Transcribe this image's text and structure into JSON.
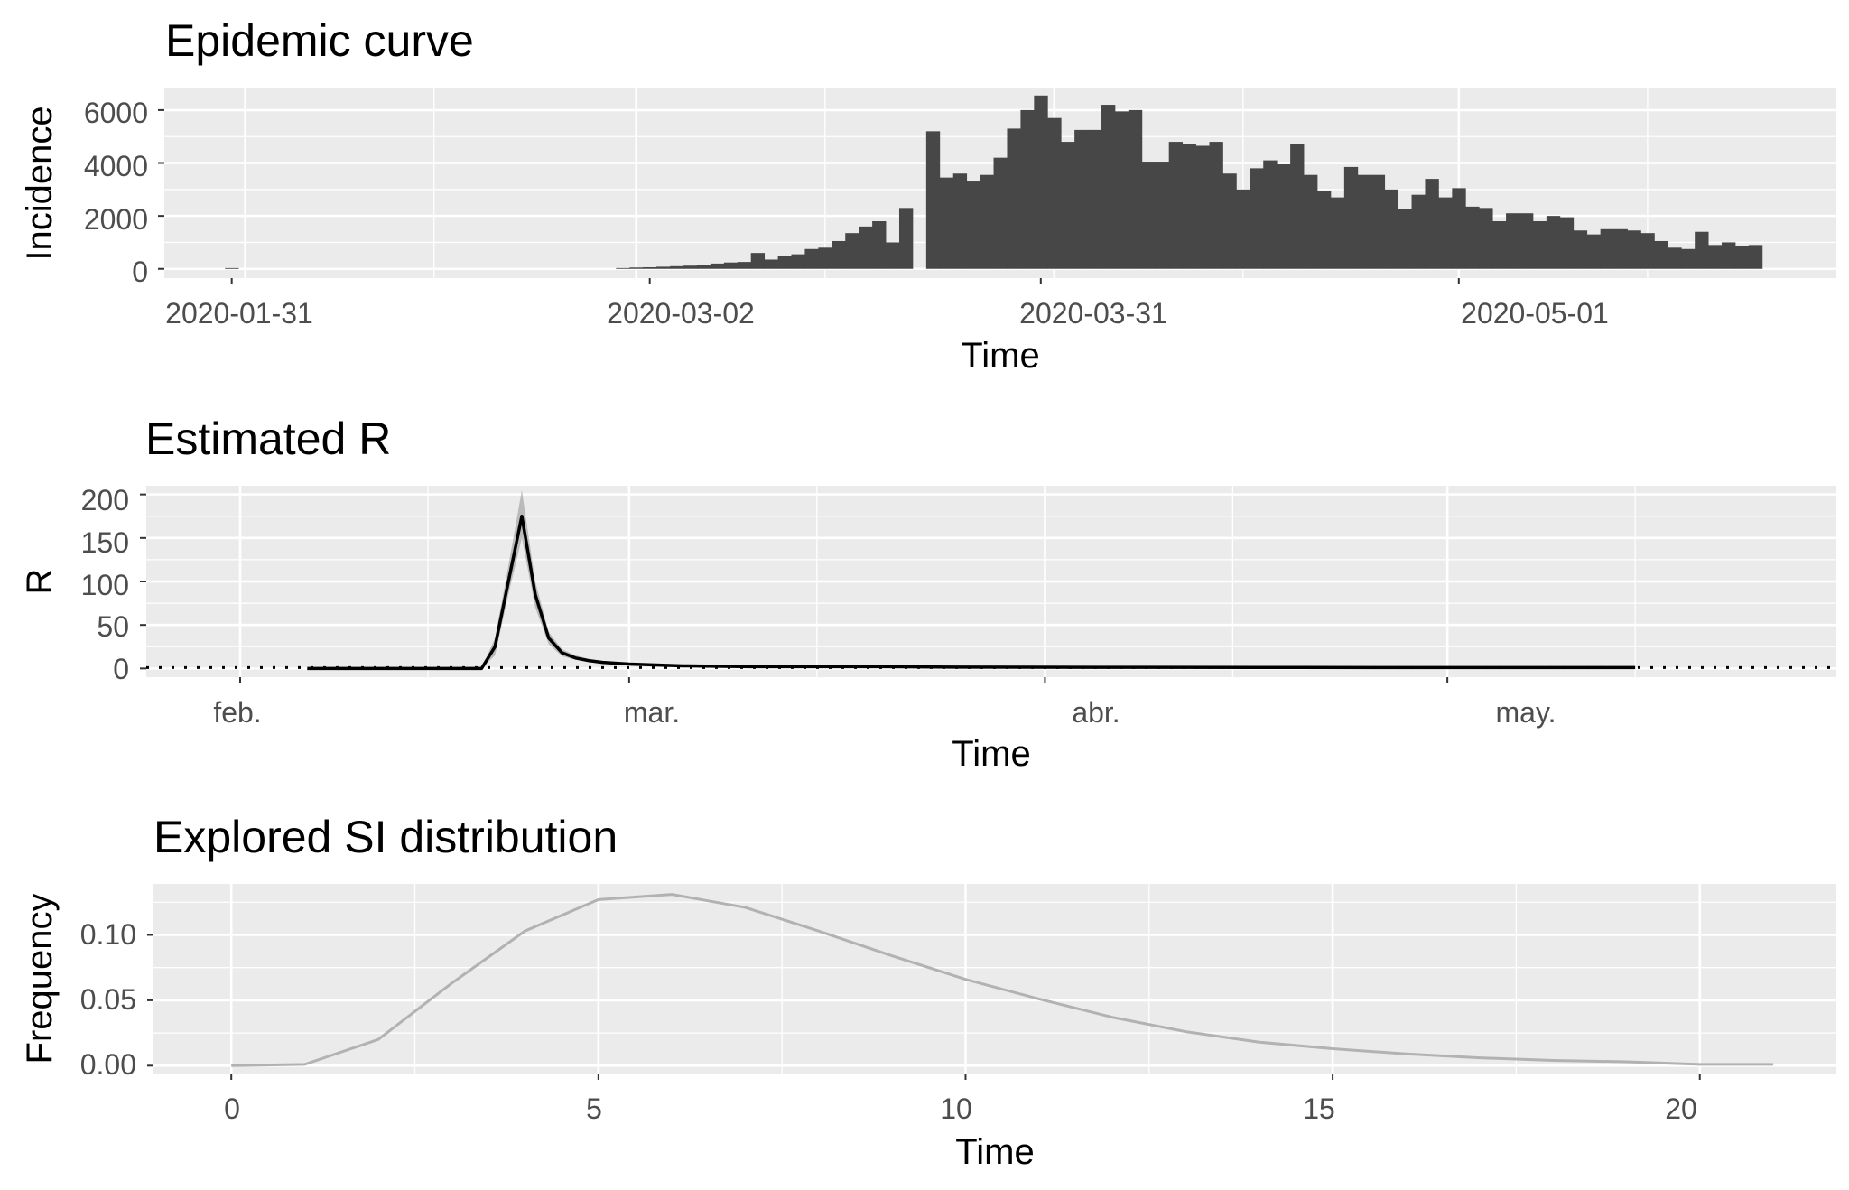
{
  "chart_data": [
    {
      "type": "bar",
      "title": "Epidemic curve",
      "xlabel": "Time",
      "ylabel": "Incidence",
      "x_ticks": [
        "2020-01-31",
        "2020-03-02",
        "2020-03-31",
        "2020-05-01"
      ],
      "y_ticks": [
        "0",
        "2000",
        "4000",
        "6000"
      ],
      "ylim": [
        -350,
        6850
      ],
      "xlim": [
        "2020-01-26",
        "2020-05-29"
      ],
      "grid": true,
      "start_date": "2020-01-31",
      "values": [
        30,
        0,
        0,
        0,
        0,
        0,
        0,
        0,
        0,
        0,
        0,
        0,
        0,
        0,
        0,
        0,
        0,
        0,
        0,
        0,
        0,
        0,
        0,
        0,
        0,
        0,
        0,
        0,
        0,
        30,
        50,
        60,
        80,
        100,
        120,
        150,
        200,
        240,
        260,
        600,
        350,
        500,
        550,
        750,
        800,
        1050,
        1350,
        1600,
        1800,
        1000,
        2300,
        0,
        5200,
        3450,
        3600,
        3300,
        3550,
        4200,
        5300,
        6000,
        6550,
        5700,
        4800,
        5250,
        5250,
        6200,
        5950,
        6000,
        4050,
        4050,
        4800,
        4700,
        4650,
        4800,
        3600,
        3000,
        3800,
        4100,
        3950,
        4700,
        3550,
        2950,
        2700,
        3850,
        3550,
        3550,
        3000,
        2250,
        2800,
        3400,
        2700,
        3050,
        2350,
        2300,
        1800,
        2100,
        2100,
        1800,
        2000,
        1950,
        1450,
        1300,
        1500,
        1500,
        1450,
        1350,
        1050,
        800,
        750,
        1400,
        900,
        1000,
        850,
        900
      ]
    },
    {
      "type": "line",
      "title": "Estimated R",
      "xlabel": "Time",
      "ylabel": "R",
      "x_ticks": [
        "feb.",
        "mar.",
        "abr.",
        "may."
      ],
      "y_ticks": [
        "0",
        "50",
        "100",
        "150",
        "200"
      ],
      "ylim": [
        -10,
        210
      ],
      "xlim": [
        "2020-01-25",
        "2020-05-30"
      ],
      "grid": true,
      "reference_line": 1,
      "series": [
        {
          "x": [
            "2020-02-06",
            "2020-02-19",
            "2020-02-20",
            "2020-02-21",
            "2020-02-22",
            "2020-02-23",
            "2020-02-24",
            "2020-02-25",
            "2020-02-26",
            "2020-02-27",
            "2020-02-28",
            "2020-03-01",
            "2020-03-05",
            "2020-03-10",
            "2020-03-15",
            "2020-03-20",
            "2020-03-25",
            "2020-04-05",
            "2020-04-20",
            "2020-05-05",
            "2020-05-15"
          ],
          "values": [
            0,
            0,
            25,
            100,
            175,
            85,
            35,
            18,
            12,
            9,
            7,
            5,
            3,
            2,
            2,
            2,
            1.5,
            1.3,
            1.1,
            1,
            1
          ],
          "ci_low": [
            0,
            0,
            15,
            85,
            150,
            70,
            28,
            14,
            10,
            7,
            6,
            4,
            2.5,
            1.5,
            1.5,
            1.5,
            1.2,
            1.1,
            0.9,
            0.8,
            0.8
          ],
          "ci_high": [
            0,
            0,
            35,
            118,
            205,
            100,
            42,
            22,
            15,
            11,
            9,
            6,
            3.5,
            2.5,
            2.5,
            2.5,
            1.8,
            1.5,
            1.3,
            1.2,
            1.2
          ]
        }
      ]
    },
    {
      "type": "line",
      "title": "Explored SI distribution",
      "xlabel": "Time",
      "ylabel": "Frequency",
      "x_ticks": [
        "0",
        "5",
        "10",
        "15",
        "20"
      ],
      "y_ticks": [
        "0.00",
        "0.05",
        "0.10"
      ],
      "xlim": [
        -1.06,
        21.86
      ],
      "ylim": [
        -0.006,
        0.139
      ],
      "grid": true,
      "series": [
        {
          "x": [
            0,
            1,
            2,
            3,
            4,
            5,
            6,
            7,
            8,
            9,
            10,
            11,
            12,
            13,
            14,
            15,
            16,
            17,
            18,
            19,
            20,
            21
          ],
          "values": [
            0,
            0.001,
            0.02,
            0.063,
            0.103,
            0.127,
            0.131,
            0.121,
            0.103,
            0.084,
            0.066,
            0.051,
            0.037,
            0.026,
            0.018,
            0.013,
            0.009,
            0.006,
            0.004,
            0.003,
            0.001,
            0.001
          ]
        }
      ]
    }
  ]
}
